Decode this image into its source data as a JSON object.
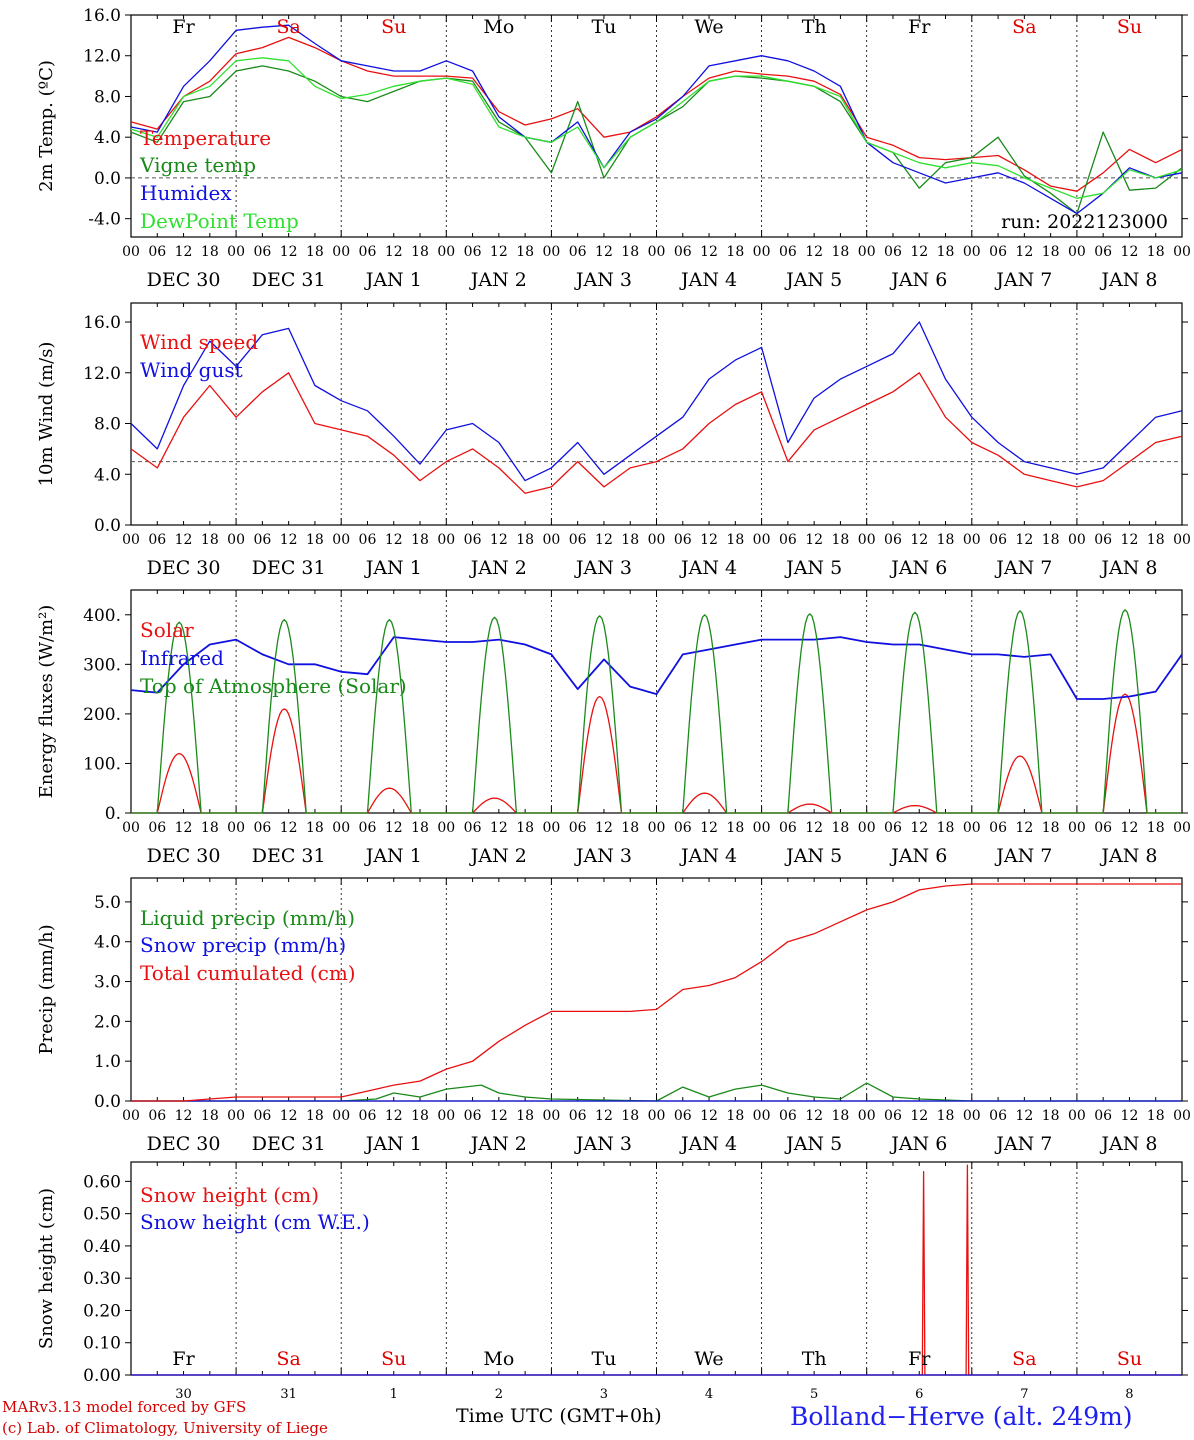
{
  "run_label": "run: 2022123000",
  "footer": {
    "model": "MARv3.13 model forced by GFS",
    "copyright": "(c) Lab. of Climatology, University of Liege",
    "time_axis": "Time UTC (GMT+0h)",
    "station": "Bolland−Herve (alt. 249m)"
  },
  "hour_ticks": [
    "00",
    "06",
    "12",
    "18"
  ],
  "date_labels": [
    "DEC 30",
    "DEC 31",
    "JAN  1",
    "JAN  2",
    "JAN  3",
    "JAN  4",
    "JAN  5",
    "JAN  6",
    "JAN  7",
    "JAN  8"
  ],
  "day_names": [
    "Fr",
    "Sa",
    "Su",
    "Mo",
    "Tu",
    "We",
    "Th",
    "Fr",
    "Sa",
    "Su"
  ],
  "day_name_colors": [
    "#000000",
    "#e00000",
    "#e00000",
    "#000000",
    "#000000",
    "#000000",
    "#000000",
    "#000000",
    "#e00000",
    "#e00000"
  ],
  "day_numbers": [
    "30",
    "31",
    "1",
    "2",
    "3",
    "4",
    "5",
    "6",
    "7",
    "8"
  ],
  "colors": {
    "red": "#e81010",
    "green": "#1a8a1a",
    "blue": "#1010e0",
    "lightgreen": "#30e030",
    "gray": "#444444"
  },
  "chart_data": [
    {
      "type": "line",
      "ylabel": "2m Temp. (ºC)",
      "ylim": [
        -5.8,
        16.0
      ],
      "yticks": [
        "16.0",
        "12.0",
        "8.0",
        "4.0",
        "0.0",
        "-4.0"
      ],
      "ytick_values": [
        16,
        12,
        8,
        4,
        0,
        -4
      ],
      "ref_line": 0,
      "x_unit": "hours since 2022-12-30 00 UTC",
      "series": [
        {
          "name": "Temperature",
          "color": "#e81010",
          "x": [
            0,
            6,
            12,
            18,
            24,
            30,
            36,
            42,
            48,
            54,
            60,
            66,
            72,
            78,
            84,
            90,
            96,
            102,
            108,
            114,
            120,
            126,
            132,
            138,
            144,
            150,
            156,
            162,
            168,
            174,
            180,
            186,
            192,
            198,
            204,
            210,
            216,
            222,
            228,
            234,
            240
          ],
          "values": [
            5.5,
            4.8,
            8.0,
            9.5,
            12.2,
            12.8,
            13.8,
            12.8,
            11.5,
            10.5,
            10.0,
            10.0,
            10.0,
            9.8,
            6.5,
            5.2,
            5.8,
            6.8,
            4.0,
            4.5,
            6.0,
            8.0,
            9.8,
            10.5,
            10.2,
            10.0,
            9.5,
            8.2,
            4.0,
            3.2,
            2.0,
            1.8,
            2.0,
            2.2,
            0.8,
            -0.8,
            -1.3,
            0.5,
            2.8,
            1.5,
            2.8
          ]
        },
        {
          "name": "Vigne temp",
          "color": "#1a8a1a",
          "x": [
            0,
            6,
            12,
            18,
            24,
            30,
            36,
            42,
            48,
            54,
            60,
            66,
            72,
            78,
            84,
            90,
            96,
            102,
            108,
            114,
            120,
            126,
            132,
            138,
            144,
            150,
            156,
            162,
            168,
            174,
            180,
            186,
            192,
            198,
            204,
            210,
            216,
            222,
            228,
            234,
            240
          ],
          "values": [
            4.5,
            3.5,
            7.5,
            8.0,
            10.5,
            11.0,
            10.5,
            9.5,
            8.0,
            7.5,
            8.5,
            9.5,
            9.8,
            9.5,
            5.5,
            4.0,
            0.5,
            7.5,
            0.0,
            4.0,
            5.5,
            7.0,
            9.5,
            10.0,
            9.8,
            9.5,
            9.0,
            7.5,
            3.5,
            2.5,
            -1.0,
            1.5,
            2.0,
            4.0,
            0.2,
            -1.5,
            -3.5,
            4.5,
            -1.2,
            -1.0,
            1.0
          ]
        },
        {
          "name": "Humidex",
          "color": "#1010e0",
          "x": [
            0,
            6,
            12,
            18,
            24,
            30,
            36,
            42,
            48,
            54,
            60,
            66,
            72,
            78,
            84,
            90,
            96,
            102,
            108,
            114,
            120,
            126,
            132,
            138,
            144,
            150,
            156,
            162,
            168,
            174,
            180,
            186,
            192,
            198,
            204,
            210,
            216,
            222,
            228,
            234,
            240
          ],
          "values": [
            5.0,
            4.5,
            9.0,
            11.5,
            14.5,
            14.8,
            15.0,
            13.2,
            11.5,
            11.0,
            10.5,
            10.5,
            11.5,
            10.5,
            6.0,
            4.0,
            3.5,
            5.5,
            1.0,
            4.5,
            5.8,
            8.0,
            11.0,
            11.5,
            12.0,
            11.5,
            10.5,
            9.0,
            3.5,
            1.5,
            0.5,
            -0.5,
            0.0,
            0.5,
            -0.5,
            -2.0,
            -3.5,
            -1.5,
            1.0,
            0.0,
            0.5
          ]
        },
        {
          "name": "DewPoint Temp",
          "color": "#30e030",
          "x": [
            0,
            6,
            12,
            18,
            24,
            30,
            36,
            42,
            48,
            54,
            60,
            66,
            72,
            78,
            84,
            90,
            96,
            102,
            108,
            114,
            120,
            126,
            132,
            138,
            144,
            150,
            156,
            162,
            168,
            174,
            180,
            186,
            192,
            198,
            204,
            210,
            216,
            222,
            228,
            234,
            240
          ],
          "values": [
            4.8,
            4.0,
            8.0,
            9.0,
            11.5,
            11.8,
            11.5,
            9.0,
            7.8,
            8.2,
            9.0,
            9.5,
            9.8,
            9.2,
            5.0,
            4.0,
            3.5,
            5.0,
            1.0,
            4.0,
            5.5,
            7.5,
            9.5,
            10.0,
            10.0,
            9.5,
            9.0,
            8.0,
            3.5,
            2.5,
            1.5,
            1.0,
            1.5,
            1.2,
            0.0,
            -1.0,
            -2.0,
            -1.5,
            0.8,
            0.0,
            0.8
          ]
        }
      ],
      "legend": [
        "Temperature",
        "Vigne temp",
        "Humidex",
        "DewPoint Temp"
      ]
    },
    {
      "type": "line",
      "ylabel": "10m Wind (m/s)",
      "ylim": [
        0,
        17.5
      ],
      "yticks": [
        "16.0",
        "12.0",
        "8.0",
        "4.0",
        "0.0"
      ],
      "ytick_values": [
        16,
        12,
        8,
        4,
        0
      ],
      "ref_line": 5,
      "series": [
        {
          "name": "Wind speed",
          "color": "#e81010",
          "x": [
            0,
            6,
            12,
            18,
            24,
            30,
            36,
            42,
            48,
            54,
            60,
            66,
            72,
            78,
            84,
            90,
            96,
            102,
            108,
            114,
            120,
            126,
            132,
            138,
            144,
            150,
            156,
            162,
            168,
            174,
            180,
            186,
            192,
            198,
            204,
            210,
            216,
            222,
            228,
            234,
            240
          ],
          "values": [
            6.0,
            4.5,
            8.5,
            11.0,
            8.5,
            10.5,
            12.0,
            8.0,
            7.5,
            7.0,
            5.5,
            3.5,
            5.0,
            6.0,
            4.5,
            2.5,
            3.0,
            5.0,
            3.0,
            4.5,
            5.0,
            6.0,
            8.0,
            9.5,
            10.5,
            5.0,
            7.5,
            8.5,
            9.5,
            10.5,
            12.0,
            8.5,
            6.5,
            5.5,
            4.0,
            3.5,
            3.0,
            3.5,
            5.0,
            6.5,
            7.0
          ]
        },
        {
          "name": "Wind gust",
          "color": "#1010e0",
          "x": [
            0,
            6,
            12,
            18,
            24,
            30,
            36,
            42,
            48,
            54,
            60,
            66,
            72,
            78,
            84,
            90,
            96,
            102,
            108,
            114,
            120,
            126,
            132,
            138,
            144,
            150,
            156,
            162,
            168,
            174,
            180,
            186,
            192,
            198,
            204,
            210,
            216,
            222,
            228,
            234,
            240
          ],
          "values": [
            8.0,
            6.0,
            11.0,
            14.5,
            12.5,
            15.0,
            15.5,
            11.0,
            9.8,
            9.0,
            7.0,
            4.8,
            7.5,
            8.0,
            6.5,
            3.5,
            4.5,
            6.5,
            4.0,
            5.5,
            7.0,
            8.5,
            11.5,
            13.0,
            14.0,
            6.5,
            10.0,
            11.5,
            12.5,
            13.5,
            16.0,
            11.5,
            8.5,
            6.5,
            5.0,
            4.5,
            4.0,
            4.5,
            6.5,
            8.5,
            9.0
          ]
        }
      ],
      "legend": [
        "Wind speed",
        "Wind gust"
      ]
    },
    {
      "type": "line",
      "ylabel": "Energy fluxes (W/m²)",
      "ylim": [
        0,
        450
      ],
      "yticks": [
        "400.",
        "300.",
        "200.",
        "100.",
        "0."
      ],
      "ytick_values": [
        400,
        300,
        200,
        100,
        0
      ],
      "series": [
        {
          "name": "Solar",
          "color": "#e81010",
          "daily_peaks": [
            120,
            210,
            50,
            30,
            235,
            40,
            18,
            15,
            115,
            240
          ]
        },
        {
          "name": "Infrared",
          "color": "#1010e0",
          "x": [
            0,
            6,
            12,
            18,
            24,
            30,
            36,
            42,
            48,
            54,
            60,
            66,
            72,
            78,
            84,
            90,
            96,
            102,
            108,
            114,
            120,
            126,
            132,
            138,
            144,
            150,
            156,
            162,
            168,
            174,
            180,
            186,
            192,
            198,
            204,
            210,
            216,
            222,
            228,
            234,
            240
          ],
          "values": [
            248,
            243,
            300,
            340,
            350,
            320,
            300,
            300,
            285,
            280,
            355,
            350,
            345,
            345,
            350,
            340,
            320,
            250,
            310,
            255,
            240,
            320,
            330,
            340,
            350,
            350,
            350,
            355,
            345,
            340,
            340,
            330,
            320,
            320,
            315,
            320,
            230,
            230,
            235,
            245,
            320
          ]
        },
        {
          "name": "Top of Atmosphere (Solar)",
          "color": "#1a8a1a",
          "daily_peaks": [
            385,
            390,
            390,
            395,
            398,
            400,
            402,
            405,
            408,
            410
          ]
        }
      ],
      "legend": [
        "Solar",
        "Infrared",
        "Top of Atmosphere (Solar)"
      ]
    },
    {
      "type": "line",
      "ylabel": "Precip (mm/h)",
      "ylim": [
        0,
        5.6
      ],
      "yticks": [
        "5.0",
        "4.0",
        "3.0",
        "2.0",
        "1.0",
        "0.0"
      ],
      "ytick_values": [
        5,
        4,
        3,
        2,
        1,
        0
      ],
      "series": [
        {
          "name": "Liquid precip (mm/h)",
          "color": "#1a8a1a",
          "x": [
            0,
            12,
            24,
            48,
            56,
            60,
            66,
            72,
            80,
            84,
            90,
            96,
            120,
            126,
            132,
            138,
            144,
            150,
            156,
            162,
            168,
            174,
            180,
            192,
            240
          ],
          "values": [
            0,
            0,
            0,
            0,
            0.05,
            0.2,
            0.1,
            0.3,
            0.4,
            0.2,
            0.1,
            0.05,
            0,
            0.35,
            0.1,
            0.3,
            0.4,
            0.2,
            0.1,
            0.05,
            0.45,
            0.1,
            0.05,
            0,
            0
          ]
        },
        {
          "name": "Snow precip (mm/h)",
          "color": "#1010e0",
          "x": [
            0,
            240
          ],
          "values": [
            0,
            0
          ]
        },
        {
          "name": "Total cumulated (cm)",
          "color": "#e81010",
          "x": [
            0,
            12,
            24,
            48,
            56,
            60,
            66,
            72,
            78,
            84,
            90,
            96,
            102,
            108,
            114,
            120,
            126,
            132,
            138,
            144,
            150,
            156,
            162,
            168,
            174,
            180,
            186,
            192,
            198,
            204,
            210,
            216,
            222,
            228,
            234,
            240
          ],
          "values": [
            0,
            0,
            0.1,
            0.1,
            0.3,
            0.4,
            0.5,
            0.8,
            1.0,
            1.5,
            1.9,
            2.25,
            2.25,
            2.25,
            2.25,
            2.3,
            2.8,
            2.9,
            3.1,
            3.5,
            4.0,
            4.2,
            4.5,
            4.8,
            5.0,
            5.3,
            5.4,
            5.45,
            5.45,
            5.45,
            5.45,
            5.45,
            5.45,
            5.45,
            5.45,
            5.45
          ]
        }
      ],
      "legend": [
        "Liquid precip (mm/h)",
        "Snow precip (mm/h)",
        "Total cumulated (cm)"
      ]
    },
    {
      "type": "line",
      "ylabel": "Snow height (cm)",
      "ylim": [
        0,
        0.66
      ],
      "yticks": [
        "0.60",
        "0.50",
        "0.40",
        "0.30",
        "0.20",
        "0.10",
        "0.00"
      ],
      "ytick_values": [
        0.6,
        0.5,
        0.4,
        0.3,
        0.2,
        0.1,
        0.0
      ],
      "series": [
        {
          "name": "Snow height (cm)",
          "color": "#e81010",
          "spikes": [
            {
              "x": 181,
              "value": 0.63
            },
            {
              "x": 191,
              "value": 0.65
            }
          ]
        },
        {
          "name": "Snow height (cm W.E.)",
          "color": "#1010e0",
          "x": [
            0,
            240
          ],
          "values": [
            0,
            0
          ]
        }
      ],
      "legend": [
        "Snow height (cm)",
        "Snow height (cm W.E.)"
      ]
    }
  ]
}
